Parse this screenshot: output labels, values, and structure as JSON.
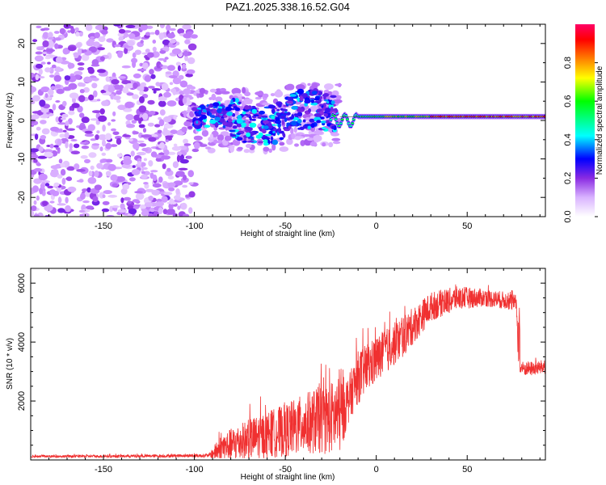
{
  "figure": {
    "title": "PAZ1.2025.338.16.52.G04"
  },
  "colorbar": {
    "label": "Normalized spectral amplitude",
    "ticks": [
      "0.0",
      "0.2",
      "0.4",
      "0.6",
      "0.8"
    ],
    "tick_values": [
      0.0,
      0.2,
      0.4,
      0.6,
      0.8
    ],
    "range": [
      0,
      1
    ],
    "colors": [
      "#ffffff",
      "#c98cff",
      "#8a2be2",
      "#0000ff",
      "#00ffff",
      "#00ff00",
      "#ffff00",
      "#ff8000",
      "#ff0000",
      "#ff0066"
    ]
  },
  "chart_data": [
    {
      "type": "heatmap",
      "title": "PAZ1.2025.338.16.52.G04",
      "xlabel": "Height of straight line (km)",
      "ylabel": "Frequency (Hz)",
      "xlim": [
        -190,
        93
      ],
      "ylim": [
        -25,
        25
      ],
      "xticks": [
        -150,
        -100,
        -50,
        0,
        50
      ],
      "xtick_labels": [
        "-150",
        "-100",
        "-50",
        "0",
        "50"
      ],
      "yticks": [
        -20,
        -10,
        0,
        10,
        20
      ],
      "ytick_labels": [
        "-20",
        "-10",
        "0",
        "10",
        "20"
      ],
      "description_regions": [
        {
          "x_range": [
            -190,
            -100
          ],
          "freq_range": [
            -25,
            25
          ],
          "amplitude": 0.1
        },
        {
          "x_range": [
            -100,
            -25
          ],
          "freq_range": [
            -8,
            8
          ],
          "amplitude": 0.25
        },
        {
          "x_range": [
            -25,
            93
          ],
          "freq_center": 1,
          "amplitude": 0.9
        }
      ]
    },
    {
      "type": "line",
      "xlabel": "Height of straight line (km)",
      "ylabel": "SNR (10 * v/v)",
      "xlim": [
        -190,
        93
      ],
      "ylim": [
        0,
        6500
      ],
      "xticks": [
        -150,
        -100,
        -50,
        0,
        50
      ],
      "xtick_labels": [
        "-150",
        "-100",
        "-50",
        "0",
        "50"
      ],
      "yticks": [
        2000,
        4000,
        6000
      ],
      "ytick_labels": [
        "2000",
        "4000",
        "6000"
      ],
      "color": "#f03030",
      "envelope": {
        "x": [
          -190,
          -130,
          -92,
          -85,
          -70,
          -50,
          -35,
          -20,
          -15,
          -10,
          0,
          15,
          30,
          45,
          60,
          72,
          77,
          79,
          85,
          93
        ],
        "mean": [
          120,
          130,
          150,
          400,
          700,
          1000,
          1300,
          1500,
          2100,
          2800,
          3400,
          4200,
          5200,
          5500,
          5500,
          5400,
          5300,
          3100,
          3100,
          3150
        ],
        "amp": [
          40,
          50,
          60,
          500,
          700,
          900,
          1100,
          1300,
          800,
          900,
          800,
          700,
          500,
          400,
          300,
          300,
          300,
          250,
          250,
          250
        ]
      }
    }
  ]
}
